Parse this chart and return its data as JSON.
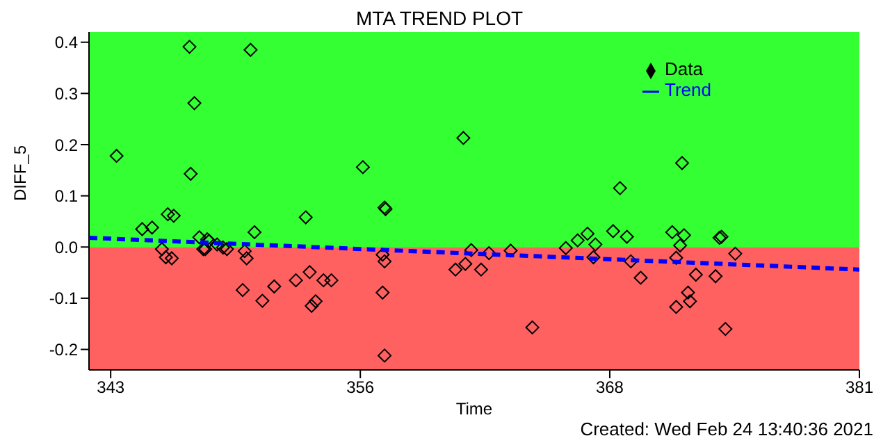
{
  "chart_data": {
    "type": "scatter",
    "title": "MTA TREND PLOT",
    "xlabel": "Time",
    "ylabel": "DIFF_5",
    "xlim": [
      341.9,
      381
    ],
    "xticks": [
      343,
      {
        "value": 355.67,
        "label": "356"
      },
      {
        "value": 368.33,
        "label": "368"
      },
      381
    ],
    "ylim": [
      -0.24,
      0.42
    ],
    "yticks": [
      -0.2,
      -0.1,
      {
        "value": 0,
        "label": "0.0"
      },
      0.1,
      0.2,
      0.3,
      0.4
    ],
    "bands": [
      {
        "axis": "y",
        "from": 0,
        "to": 0.42,
        "color": "#33ff33"
      },
      {
        "axis": "y",
        "from": -0.24,
        "to": 0,
        "color": "#ff6060"
      }
    ],
    "legend": "top right",
    "grid": false,
    "annotations": [
      "Created: Wed Feb 24 13:40:36 2021"
    ],
    "series": [
      {
        "name": "Data",
        "color": "#000000",
        "marker": "diamond",
        "x": [
          343.3,
          347.0,
          350.1,
          347.25,
          347.06,
          345.9,
          346.2,
          344.6,
          345.1,
          350.3,
          347.5,
          347.9,
          348.0,
          347.7,
          347.8,
          348.4,
          348.9,
          348.7,
          345.6,
          345.8,
          346.1,
          349.8,
          349.9,
          349.7,
          350.7,
          351.3,
          352.9,
          352.4,
          353.1,
          353.8,
          354.2,
          353.2,
          353.4,
          355.8,
          356.9,
          356.95,
          356.8,
          356.9,
          356.8,
          356.9,
          360.9,
          360.5,
          361.0,
          361.3,
          361.8,
          362.2,
          363.3,
          364.4,
          366.1,
          366.7,
          367.2,
          367.6,
          367.5,
          368.85,
          368.5,
          369.2,
          369.4,
          369.9,
          372.0,
          371.5,
          372.1,
          371.9,
          371.7,
          372.7,
          373.7,
          372.3,
          372.4,
          371.7,
          373.9,
          374.0,
          374.7,
          374.2
        ],
        "values": [
          0.178,
          0.391,
          0.385,
          0.281,
          0.143,
          0.064,
          0.061,
          0.035,
          0.038,
          0.029,
          0.019,
          0.015,
          0.012,
          -0.004,
          -0.004,
          0.005,
          -0.004,
          -0.001,
          -0.004,
          -0.02,
          -0.022,
          -0.008,
          -0.022,
          -0.084,
          -0.105,
          -0.077,
          0.058,
          -0.065,
          -0.049,
          -0.065,
          -0.065,
          -0.115,
          -0.106,
          0.156,
          0.077,
          0.074,
          -0.015,
          -0.028,
          -0.089,
          -0.212,
          0.213,
          -0.044,
          -0.033,
          -0.006,
          -0.044,
          -0.012,
          -0.007,
          -0.157,
          -0.002,
          0.013,
          0.026,
          0.005,
          -0.02,
          0.115,
          0.031,
          0.02,
          -0.028,
          -0.06,
          0.164,
          0.029,
          0.023,
          0.003,
          -0.021,
          -0.054,
          -0.057,
          -0.089,
          -0.106,
          -0.117,
          0.018,
          0.02,
          -0.013,
          -0.16
        ]
      },
      {
        "name": "Trend",
        "type": "line",
        "color": "#0000ff",
        "marker": "none",
        "line_style": "dashed",
        "x": [
          341.9,
          381
        ],
        "values": [
          0.018,
          -0.044
        ]
      }
    ]
  }
}
